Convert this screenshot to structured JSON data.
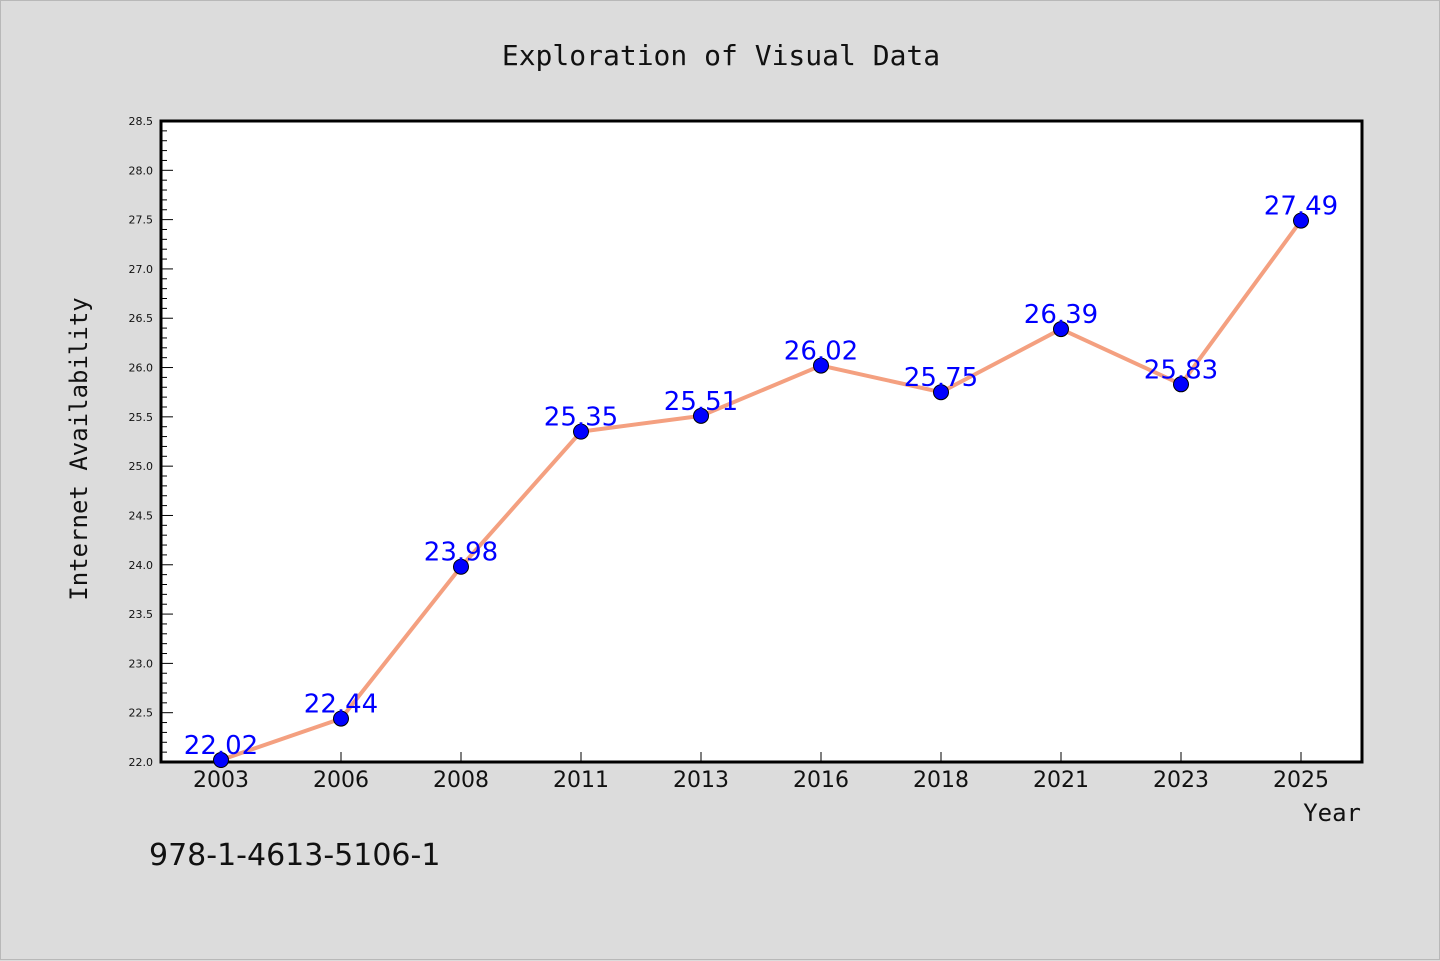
{
  "chart_data": {
    "type": "line",
    "title": "Exploration of Visual Data",
    "xlabel": "Year",
    "ylabel": "Internet Availability",
    "categories": [
      "2003",
      "2006",
      "2008",
      "2011",
      "2013",
      "2016",
      "2018",
      "2021",
      "2023",
      "2025"
    ],
    "series": [
      {
        "values": [
          22.02,
          22.44,
          23.98,
          25.35,
          25.51,
          26.02,
          25.75,
          26.39,
          25.83,
          27.49
        ],
        "labels": [
          "22.02",
          "22.44",
          "23.98",
          "25.35",
          "25.51",
          "26.02",
          "25.75",
          "26.39",
          "25.83",
          "27.49"
        ],
        "line_color": "#f4a080",
        "marker_color": "#0000ff"
      }
    ],
    "ylim": [
      22.0,
      28.5
    ],
    "yticks": [
      "22.0",
      "22.5",
      "23.0",
      "23.5",
      "24.0",
      "24.5",
      "25.0",
      "25.5",
      "26.0",
      "26.5",
      "27.0",
      "27.5",
      "28.0",
      "28.5"
    ],
    "grid": false,
    "legend": "none",
    "background": "#dcdcdc",
    "plot_background": "#ffffff"
  },
  "footer": {
    "isbn": "978-1-4613-5106-1"
  }
}
